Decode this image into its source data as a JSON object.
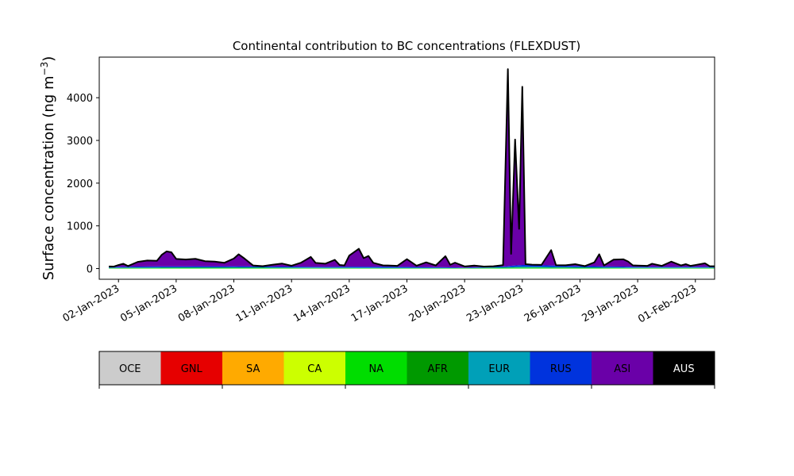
{
  "chart_data": {
    "type": "area",
    "title": "Continental contribution to BC concentrations (FLEXDUST)",
    "ylabel": "Surface concentration (ng m",
    "ylabel_sup": "−3",
    "ylabel_close": ")",
    "xlabel": "",
    "x_start": "2023-01-01",
    "x_end": "2023-02-02",
    "ylim": [
      -250,
      4950
    ],
    "yticks": [
      {
        "value": 0,
        "label": "0"
      },
      {
        "value": 1000,
        "label": "1000"
      },
      {
        "value": 2000,
        "label": "2000"
      },
      {
        "value": 3000,
        "label": "3000"
      },
      {
        "value": 4000,
        "label": "4000"
      }
    ],
    "xticks": [
      {
        "date": "2023-01-02",
        "label": "02-Jan-2023"
      },
      {
        "date": "2023-01-05",
        "label": "05-Jan-2023"
      },
      {
        "date": "2023-01-08",
        "label": "08-Jan-2023"
      },
      {
        "date": "2023-01-11",
        "label": "11-Jan-2023"
      },
      {
        "date": "2023-01-14",
        "label": "14-Jan-2023"
      },
      {
        "date": "2023-01-17",
        "label": "17-Jan-2023"
      },
      {
        "date": "2023-01-20",
        "label": "20-Jan-2023"
      },
      {
        "date": "2023-01-23",
        "label": "23-Jan-2023"
      },
      {
        "date": "2023-01-26",
        "label": "26-Jan-2023"
      },
      {
        "date": "2023-01-29",
        "label": "29-Jan-2023"
      },
      {
        "date": "2023-02-01",
        "label": "01-Feb-2023"
      }
    ],
    "grid": false,
    "total_outline_color": "#000000",
    "legend": [
      {
        "name": "OCE",
        "color": "#cccccc",
        "text_color": "#000000"
      },
      {
        "name": "GNL",
        "color": "#e60000",
        "text_color": "#000000"
      },
      {
        "name": "SA",
        "color": "#ffaa00",
        "text_color": "#000000"
      },
      {
        "name": "CA",
        "color": "#ccff00",
        "text_color": "#000000"
      },
      {
        "name": "NA",
        "color": "#00dd00",
        "text_color": "#000000"
      },
      {
        "name": "AFR",
        "color": "#009900",
        "text_color": "#000000"
      },
      {
        "name": "EUR",
        "color": "#00a0b8",
        "text_color": "#000000"
      },
      {
        "name": "RUS",
        "color": "#0033dd",
        "text_color": "#000000"
      },
      {
        "name": "ASI",
        "color": "#6a00a8",
        "text_color": "#000000"
      },
      {
        "name": "AUS",
        "color": "#000000",
        "text_color": "#ffffff"
      }
    ],
    "series": [
      {
        "name": "NA",
        "color": "#00dd00",
        "points": [
          [
            "2023-01-01T12:00",
            15
          ],
          [
            "2023-01-04T00:00",
            18
          ],
          [
            "2023-01-08T00:00",
            20
          ],
          [
            "2023-01-12T00:00",
            15
          ],
          [
            "2023-01-16T00:00",
            12
          ],
          [
            "2023-01-20T00:00",
            10
          ],
          [
            "2023-01-22T00:00",
            20
          ],
          [
            "2023-01-23T00:00",
            25
          ],
          [
            "2023-01-26T00:00",
            20
          ],
          [
            "2023-01-29T00:00",
            15
          ],
          [
            "2023-02-01T00:00",
            15
          ]
        ]
      },
      {
        "name": "EUR",
        "color": "#00a0b8",
        "points": [
          [
            "2023-01-01T12:00",
            5
          ],
          [
            "2023-01-04T00:00",
            8
          ],
          [
            "2023-01-08T00:00",
            10
          ],
          [
            "2023-01-12T00:00",
            8
          ],
          [
            "2023-01-16T00:00",
            8
          ],
          [
            "2023-01-20T00:00",
            5
          ],
          [
            "2023-01-22T00:00",
            10
          ],
          [
            "2023-01-23T00:00",
            20
          ],
          [
            "2023-01-26T00:00",
            10
          ],
          [
            "2023-01-29T00:00",
            8
          ],
          [
            "2023-02-01T00:00",
            8
          ]
        ]
      },
      {
        "name": "RUS",
        "color": "#0033dd",
        "points": [
          [
            "2023-01-01T12:00",
            20
          ],
          [
            "2023-01-04T00:00",
            25
          ],
          [
            "2023-01-08T00:00",
            25
          ],
          [
            "2023-01-12T00:00",
            20
          ],
          [
            "2023-01-16T00:00",
            25
          ],
          [
            "2023-01-20T00:00",
            10
          ],
          [
            "2023-01-22T00:00",
            20
          ],
          [
            "2023-01-23T00:00",
            40
          ],
          [
            "2023-01-26T00:00",
            30
          ],
          [
            "2023-01-29T00:00",
            20
          ],
          [
            "2023-02-01T00:00",
            20
          ]
        ]
      },
      {
        "name": "ASI",
        "color": "#6a00a8",
        "points": [
          [
            "2023-01-01T12:00",
            10
          ],
          [
            "2023-01-01T18:00",
            5
          ],
          [
            "2023-01-02T00:00",
            40
          ],
          [
            "2023-01-02T06:00",
            70
          ],
          [
            "2023-01-02T12:00",
            15
          ],
          [
            "2023-01-03T00:00",
            110
          ],
          [
            "2023-01-03T12:00",
            140
          ],
          [
            "2023-01-04T00:00",
            130
          ],
          [
            "2023-01-04T06:00",
            270
          ],
          [
            "2023-01-04T12:00",
            350
          ],
          [
            "2023-01-04T18:00",
            330
          ],
          [
            "2023-01-05T00:00",
            175
          ],
          [
            "2023-01-05T12:00",
            160
          ],
          [
            "2023-01-06T00:00",
            175
          ],
          [
            "2023-01-06T12:00",
            120
          ],
          [
            "2023-01-07T00:00",
            110
          ],
          [
            "2023-01-07T12:00",
            80
          ],
          [
            "2023-01-08T00:00",
            180
          ],
          [
            "2023-01-08T06:00",
            280
          ],
          [
            "2023-01-08T12:00",
            200
          ],
          [
            "2023-01-09T00:00",
            20
          ],
          [
            "2023-01-09T12:00",
            5
          ],
          [
            "2023-01-10T00:00",
            40
          ],
          [
            "2023-01-10T12:00",
            70
          ],
          [
            "2023-01-11T00:00",
            20
          ],
          [
            "2023-01-11T12:00",
            95
          ],
          [
            "2023-01-12T00:00",
            230
          ],
          [
            "2023-01-12T06:00",
            90
          ],
          [
            "2023-01-12T18:00",
            70
          ],
          [
            "2023-01-13T06:00",
            160
          ],
          [
            "2023-01-13T12:00",
            40
          ],
          [
            "2023-01-13T18:00",
            30
          ],
          [
            "2023-01-14T00:00",
            260
          ],
          [
            "2023-01-14T12:00",
            420
          ],
          [
            "2023-01-14T18:00",
            200
          ],
          [
            "2023-01-15T00:00",
            250
          ],
          [
            "2023-01-15T06:00",
            90
          ],
          [
            "2023-01-15T18:00",
            30
          ],
          [
            "2023-01-16T12:00",
            20
          ],
          [
            "2023-01-17T00:00",
            180
          ],
          [
            "2023-01-17T12:00",
            30
          ],
          [
            "2023-01-18T00:00",
            110
          ],
          [
            "2023-01-18T12:00",
            40
          ],
          [
            "2023-01-19T00:00",
            260
          ],
          [
            "2023-01-19T06:00",
            60
          ],
          [
            "2023-01-19T12:00",
            110
          ],
          [
            "2023-01-20T00:00",
            25
          ],
          [
            "2023-01-20T12:00",
            40
          ],
          [
            "2023-01-21T00:00",
            10
          ],
          [
            "2023-01-21T12:00",
            10
          ],
          [
            "2023-01-22T00:00",
            30
          ],
          [
            "2023-01-22T06:00",
            4610
          ],
          [
            "2023-01-22T10:00",
            280
          ],
          [
            "2023-01-22T15:00",
            2950
          ],
          [
            "2023-01-22T20:00",
            850
          ],
          [
            "2023-01-23T00:00",
            4170
          ],
          [
            "2023-01-23T04:00",
            20
          ],
          [
            "2023-01-23T12:00",
            10
          ],
          [
            "2023-01-24T00:00",
            10
          ],
          [
            "2023-01-24T12:00",
            360
          ],
          [
            "2023-01-24T18:00",
            10
          ],
          [
            "2023-01-25T06:00",
            10
          ],
          [
            "2023-01-25T18:00",
            40
          ],
          [
            "2023-01-26T06:00",
            0
          ],
          [
            "2023-01-26T18:00",
            90
          ],
          [
            "2023-01-27T00:00",
            280
          ],
          [
            "2023-01-27T06:00",
            20
          ],
          [
            "2023-01-27T18:00",
            160
          ],
          [
            "2023-01-28T06:00",
            170
          ],
          [
            "2023-01-28T12:00",
            120
          ],
          [
            "2023-01-28T18:00",
            30
          ],
          [
            "2023-01-29T12:00",
            20
          ],
          [
            "2023-01-29T18:00",
            70
          ],
          [
            "2023-01-30T06:00",
            20
          ],
          [
            "2023-01-30T18:00",
            120
          ],
          [
            "2023-01-31T06:00",
            30
          ],
          [
            "2023-01-31T12:00",
            60
          ],
          [
            "2023-01-31T18:00",
            20
          ],
          [
            "2023-02-01T12:00",
            80
          ],
          [
            "2023-02-01T18:00",
            10
          ],
          [
            "2023-02-02T00:00",
            10
          ]
        ]
      }
    ]
  }
}
